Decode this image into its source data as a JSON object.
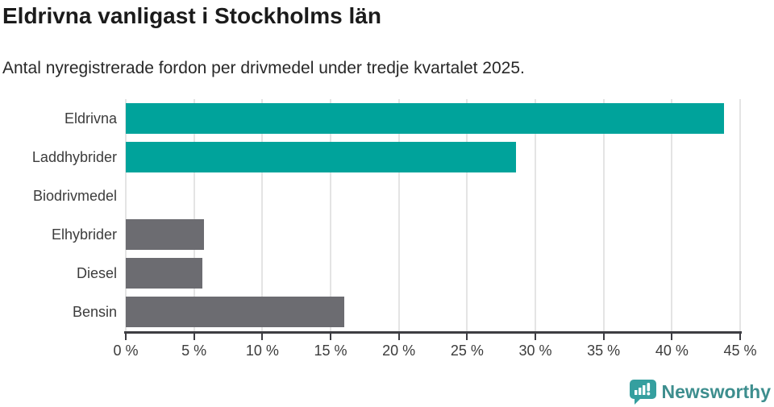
{
  "page": {
    "background": "#ffffff"
  },
  "chart_data": {
    "type": "bar",
    "orientation": "horizontal",
    "title": "Eldrivna vanligast i Stockholms län",
    "subtitle": "Antal nyregistrerade fordon per drivmedel under tredje kvartalet 2025.",
    "categories": [
      "Eldrivna",
      "Laddhybrider",
      "Biodrivmedel",
      "Elhybrider",
      "Diesel",
      "Bensin"
    ],
    "values": [
      43.8,
      28.6,
      0,
      5.7,
      5.6,
      16.0
    ],
    "unit": "%",
    "xlim": [
      0,
      45
    ],
    "xticks": [
      0,
      5,
      10,
      15,
      20,
      25,
      30,
      35,
      40,
      45
    ],
    "xtick_labels": [
      "0 %",
      "5 %",
      "10 %",
      "15 %",
      "20 %",
      "25 %",
      "30 %",
      "35 %",
      "40 %",
      "45 %"
    ],
    "bar_colors": [
      "#00a39b",
      "#00a39b",
      "#6c6c71",
      "#6c6c71",
      "#6c6c71",
      "#6c6c71"
    ],
    "grid": true,
    "legend": false
  },
  "colors": {
    "accent_teal": "#00a39b",
    "bar_gray": "#6c6c71",
    "title_text": "#1b1b1b",
    "subtitle_text": "#282828",
    "axis_text": "#3c3c3c",
    "gridline": "#e4e4e4",
    "axis_line": "#3d3d42",
    "logo_teal": "#3d8e8e",
    "logo_icon_teal": "#359f9f"
  },
  "branding": {
    "logo_text": "Newsworthy"
  }
}
